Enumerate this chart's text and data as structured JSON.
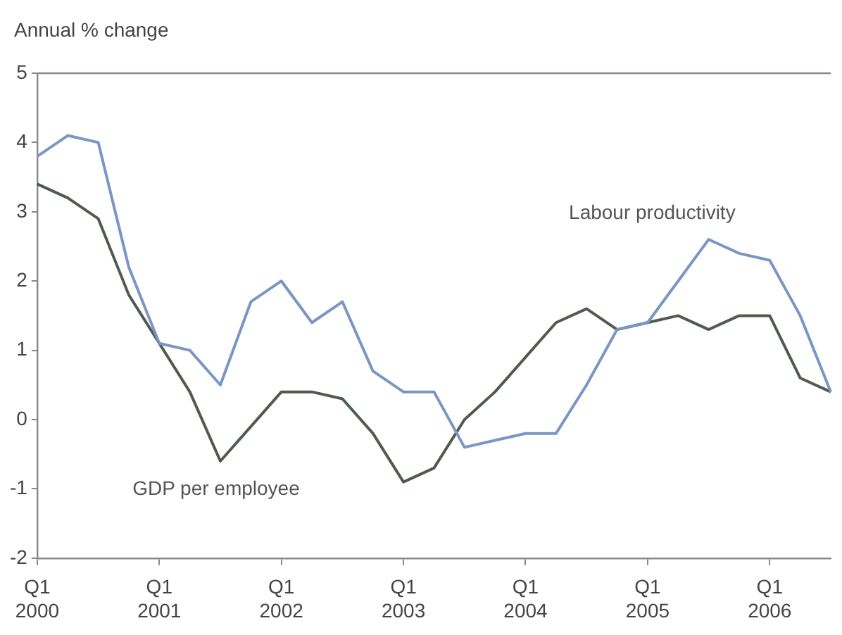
{
  "chart_data": {
    "type": "line",
    "ylabel": "Annual % change",
    "categories": [
      "Q1 2000",
      null,
      null,
      null,
      "Q1 2001",
      null,
      null,
      null,
      "Q1 2002",
      null,
      null,
      null,
      "Q1 2003",
      null,
      null,
      null,
      "Q1 2004",
      null,
      null,
      null,
      "Q1 2005",
      null,
      null,
      null,
      "Q1 2006",
      null,
      null
    ],
    "series": [
      {
        "name": "Labour productivity",
        "color": "#7b96c4",
        "values": [
          3.8,
          4.1,
          4.0,
          2.2,
          1.1,
          1.0,
          0.5,
          1.7,
          2.0,
          1.4,
          1.7,
          0.7,
          0.4,
          0.4,
          -0.4,
          -0.3,
          -0.2,
          -0.2,
          0.5,
          1.3,
          1.4,
          2.0,
          2.6,
          2.4,
          2.3,
          1.5,
          0.4
        ]
      },
      {
        "name": "GDP per employee",
        "color": "#4f5a50",
        "values": [
          3.4,
          3.2,
          2.9,
          1.8,
          1.1,
          0.4,
          -0.6,
          -0.1,
          0.4,
          0.4,
          0.3,
          -0.2,
          -0.9,
          -0.7,
          0.0,
          0.4,
          0.9,
          1.4,
          1.6,
          1.3,
          1.4,
          1.5,
          1.3,
          1.5,
          1.5,
          0.6,
          0.4
        ]
      }
    ],
    "ylim": [
      -2,
      5
    ],
    "yticks": [
      -2,
      -1,
      0,
      1,
      2,
      3,
      4,
      5
    ],
    "marker": "none",
    "line_style": "solid"
  }
}
